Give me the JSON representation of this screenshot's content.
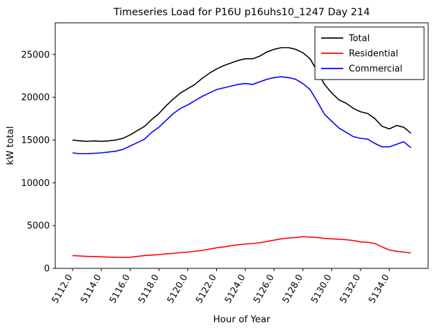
{
  "window": {
    "background": "#ffffff"
  },
  "chart_data": {
    "type": "line",
    "title": "Timeseries Load for P16U p16uhs10_1247  Day 214",
    "xlabel": "Hour of Year",
    "ylabel": "kW total",
    "grid": false,
    "legend_position": "upper right",
    "xlim": [
      5110.8,
      5136.7
    ],
    "ylim": [
      0,
      28700
    ],
    "x_ticks": [
      5112,
      5114,
      5116,
      5118,
      5120,
      5122,
      5124,
      5126,
      5128,
      5130,
      5132,
      5134
    ],
    "y_ticks": [
      0,
      5000,
      10000,
      15000,
      20000,
      25000
    ],
    "x": [
      5112.0,
      5112.5,
      5113.0,
      5113.5,
      5114.0,
      5114.5,
      5115.0,
      5115.5,
      5116.0,
      5116.5,
      5117.0,
      5117.5,
      5118.0,
      5118.5,
      5119.0,
      5119.5,
      5120.0,
      5120.5,
      5121.0,
      5121.5,
      5122.0,
      5122.5,
      5123.0,
      5123.5,
      5124.0,
      5124.5,
      5125.0,
      5125.5,
      5126.0,
      5126.5,
      5127.0,
      5127.5,
      5128.0,
      5128.5,
      5129.0,
      5129.5,
      5130.0,
      5130.5,
      5131.0,
      5131.5,
      5132.0,
      5132.5,
      5133.0,
      5133.5,
      5134.0,
      5134.5,
      5135.0,
      5135.5
    ],
    "series": [
      {
        "name": "Total",
        "color": "#000000",
        "values": [
          15000,
          14900,
          14850,
          14900,
          14850,
          14900,
          15000,
          15200,
          15600,
          16100,
          16600,
          17400,
          18100,
          19000,
          19800,
          20500,
          21000,
          21500,
          22200,
          22800,
          23300,
          23700,
          24000,
          24300,
          24500,
          24500,
          24800,
          25300,
          25600,
          25800,
          25800,
          25600,
          25200,
          24500,
          23000,
          21500,
          20500,
          19700,
          19300,
          18700,
          18300,
          18100,
          17500,
          16600,
          16300,
          16700,
          16500,
          15800
        ]
      },
      {
        "name": "Residential",
        "color": "#ff0000",
        "values": [
          1500,
          1450,
          1400,
          1380,
          1350,
          1320,
          1300,
          1280,
          1300,
          1400,
          1500,
          1550,
          1600,
          1700,
          1750,
          1850,
          1900,
          2000,
          2100,
          2250,
          2400,
          2500,
          2650,
          2750,
          2850,
          2900,
          3000,
          3150,
          3300,
          3450,
          3550,
          3600,
          3700,
          3650,
          3600,
          3500,
          3450,
          3400,
          3350,
          3250,
          3100,
          3050,
          2900,
          2500,
          2150,
          2000,
          1900,
          1800
        ]
      },
      {
        "name": "Commercial",
        "color": "#0000ff",
        "values": [
          13500,
          13400,
          13400,
          13450,
          13500,
          13600,
          13700,
          13900,
          14300,
          14700,
          15100,
          15900,
          16500,
          17300,
          18100,
          18700,
          19100,
          19600,
          20100,
          20500,
          20900,
          21100,
          21300,
          21500,
          21600,
          21500,
          21800,
          22100,
          22300,
          22400,
          22300,
          22100,
          21600,
          20900,
          19500,
          18000,
          17200,
          16400,
          15900,
          15400,
          15200,
          15100,
          14600,
          14200,
          14200,
          14500,
          14800,
          14100
        ]
      }
    ]
  }
}
